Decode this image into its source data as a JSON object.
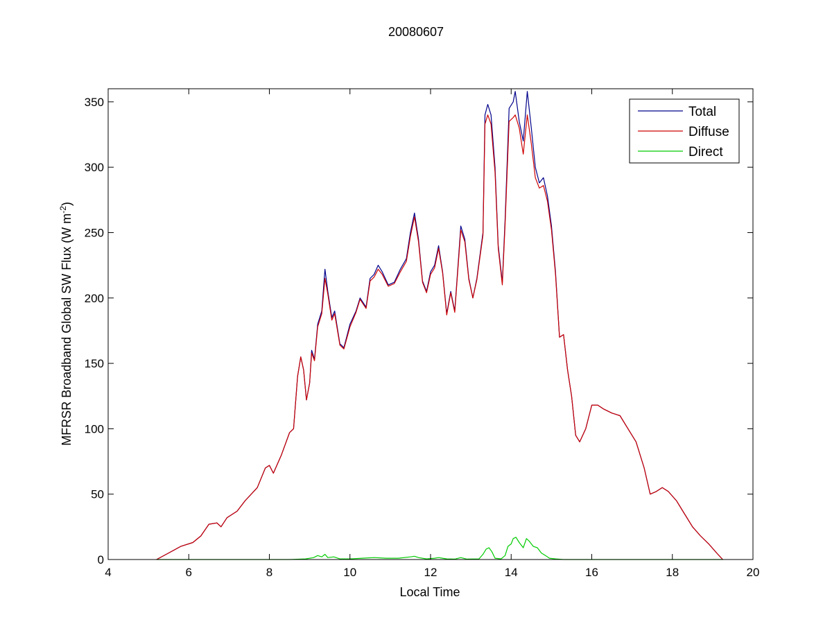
{
  "chart_data": {
    "type": "line",
    "title": "20080607",
    "xlabel": "Local Time",
    "ylabel_main": "MFRSR Broadband Global SW Flux (W m",
    "ylabel_sup": "-2",
    "ylabel_close": ")",
    "xlim": [
      4,
      20
    ],
    "ylim": [
      0,
      360
    ],
    "xticks": [
      4,
      6,
      8,
      10,
      12,
      14,
      16,
      18,
      20
    ],
    "yticks": [
      0,
      50,
      100,
      150,
      200,
      250,
      300,
      350
    ],
    "grid": false,
    "legend_position": "top-right",
    "series": [
      {
        "name": "Total",
        "color": "#00008B",
        "points": [
          [
            5.2,
            0
          ],
          [
            5.5,
            5
          ],
          [
            5.8,
            10
          ],
          [
            6.1,
            13
          ],
          [
            6.3,
            18
          ],
          [
            6.5,
            27
          ],
          [
            6.7,
            28
          ],
          [
            6.8,
            25
          ],
          [
            6.95,
            32
          ],
          [
            7.2,
            37
          ],
          [
            7.4,
            45
          ],
          [
            7.7,
            55
          ],
          [
            7.9,
            70
          ],
          [
            8.0,
            72
          ],
          [
            8.1,
            66
          ],
          [
            8.3,
            80
          ],
          [
            8.5,
            97
          ],
          [
            8.6,
            100
          ],
          [
            8.7,
            140
          ],
          [
            8.78,
            155
          ],
          [
            8.85,
            145
          ],
          [
            8.92,
            122
          ],
          [
            9.0,
            135
          ],
          [
            9.05,
            160
          ],
          [
            9.12,
            153
          ],
          [
            9.2,
            180
          ],
          [
            9.3,
            190
          ],
          [
            9.38,
            222
          ],
          [
            9.45,
            205
          ],
          [
            9.55,
            185
          ],
          [
            9.62,
            190
          ],
          [
            9.75,
            165
          ],
          [
            9.85,
            162
          ],
          [
            10.0,
            180
          ],
          [
            10.15,
            190
          ],
          [
            10.25,
            200
          ],
          [
            10.4,
            193
          ],
          [
            10.5,
            215
          ],
          [
            10.6,
            218
          ],
          [
            10.7,
            225
          ],
          [
            10.8,
            220
          ],
          [
            10.95,
            210
          ],
          [
            11.1,
            212
          ],
          [
            11.25,
            222
          ],
          [
            11.4,
            230
          ],
          [
            11.5,
            250
          ],
          [
            11.6,
            265
          ],
          [
            11.7,
            245
          ],
          [
            11.8,
            213
          ],
          [
            11.9,
            205
          ],
          [
            12.0,
            220
          ],
          [
            12.1,
            225
          ],
          [
            12.2,
            240
          ],
          [
            12.3,
            220
          ],
          [
            12.4,
            188
          ],
          [
            12.5,
            205
          ],
          [
            12.6,
            190
          ],
          [
            12.75,
            255
          ],
          [
            12.85,
            245
          ],
          [
            12.95,
            215
          ],
          [
            13.05,
            200
          ],
          [
            13.15,
            215
          ],
          [
            13.3,
            250
          ],
          [
            13.35,
            340
          ],
          [
            13.42,
            348
          ],
          [
            13.5,
            340
          ],
          [
            13.6,
            300
          ],
          [
            13.68,
            240
          ],
          [
            13.78,
            212
          ],
          [
            13.85,
            260
          ],
          [
            13.95,
            345
          ],
          [
            14.05,
            350
          ],
          [
            14.1,
            358
          ],
          [
            14.2,
            335
          ],
          [
            14.3,
            320
          ],
          [
            14.4,
            358
          ],
          [
            14.5,
            330
          ],
          [
            14.6,
            300
          ],
          [
            14.7,
            288
          ],
          [
            14.8,
            292
          ],
          [
            14.9,
            278
          ],
          [
            15.0,
            255
          ],
          [
            15.1,
            220
          ],
          [
            15.2,
            170
          ],
          [
            15.3,
            172
          ],
          [
            15.4,
            145
          ],
          [
            15.5,
            125
          ],
          [
            15.6,
            95
          ],
          [
            15.7,
            90
          ],
          [
            15.85,
            100
          ],
          [
            16.0,
            118
          ],
          [
            16.15,
            118
          ],
          [
            16.3,
            115
          ],
          [
            16.5,
            112
          ],
          [
            16.7,
            110
          ],
          [
            16.9,
            100
          ],
          [
            17.1,
            90
          ],
          [
            17.3,
            70
          ],
          [
            17.45,
            50
          ],
          [
            17.6,
            52
          ],
          [
            17.75,
            55
          ],
          [
            17.9,
            52
          ],
          [
            18.1,
            45
          ],
          [
            18.3,
            35
          ],
          [
            18.5,
            25
          ],
          [
            18.7,
            18
          ],
          [
            18.9,
            12
          ],
          [
            19.1,
            5
          ],
          [
            19.25,
            0
          ]
        ]
      },
      {
        "name": "Diffuse",
        "color": "#CC0000",
        "points": [
          [
            5.2,
            0
          ],
          [
            5.5,
            5
          ],
          [
            5.8,
            10
          ],
          [
            6.1,
            13
          ],
          [
            6.3,
            18
          ],
          [
            6.5,
            27
          ],
          [
            6.7,
            28
          ],
          [
            6.8,
            25
          ],
          [
            6.95,
            32
          ],
          [
            7.2,
            37
          ],
          [
            7.4,
            45
          ],
          [
            7.7,
            55
          ],
          [
            7.9,
            70
          ],
          [
            8.0,
            72
          ],
          [
            8.1,
            66
          ],
          [
            8.3,
            80
          ],
          [
            8.5,
            97
          ],
          [
            8.6,
            100
          ],
          [
            8.7,
            140
          ],
          [
            8.78,
            155
          ],
          [
            8.85,
            145
          ],
          [
            8.92,
            122
          ],
          [
            9.0,
            135
          ],
          [
            9.05,
            158
          ],
          [
            9.12,
            152
          ],
          [
            9.2,
            178
          ],
          [
            9.3,
            188
          ],
          [
            9.38,
            215
          ],
          [
            9.45,
            203
          ],
          [
            9.55,
            183
          ],
          [
            9.62,
            188
          ],
          [
            9.75,
            164
          ],
          [
            9.85,
            161
          ],
          [
            10.0,
            178
          ],
          [
            10.15,
            189
          ],
          [
            10.25,
            199
          ],
          [
            10.4,
            192
          ],
          [
            10.5,
            213
          ],
          [
            10.6,
            216
          ],
          [
            10.7,
            222
          ],
          [
            10.8,
            218
          ],
          [
            10.95,
            209
          ],
          [
            11.1,
            211
          ],
          [
            11.25,
            220
          ],
          [
            11.4,
            228
          ],
          [
            11.5,
            247
          ],
          [
            11.6,
            262
          ],
          [
            11.7,
            243
          ],
          [
            11.8,
            212
          ],
          [
            11.9,
            204
          ],
          [
            12.0,
            218
          ],
          [
            12.1,
            223
          ],
          [
            12.2,
            238
          ],
          [
            12.3,
            219
          ],
          [
            12.4,
            187
          ],
          [
            12.5,
            204
          ],
          [
            12.6,
            189
          ],
          [
            12.75,
            252
          ],
          [
            12.85,
            243
          ],
          [
            12.95,
            214
          ],
          [
            13.05,
            200
          ],
          [
            13.15,
            214
          ],
          [
            13.3,
            248
          ],
          [
            13.35,
            333
          ],
          [
            13.42,
            340
          ],
          [
            13.5,
            333
          ],
          [
            13.6,
            296
          ],
          [
            13.68,
            238
          ],
          [
            13.78,
            210
          ],
          [
            13.85,
            256
          ],
          [
            13.95,
            335
          ],
          [
            14.05,
            338
          ],
          [
            14.1,
            340
          ],
          [
            14.2,
            330
          ],
          [
            14.3,
            310
          ],
          [
            14.4,
            340
          ],
          [
            14.5,
            318
          ],
          [
            14.6,
            292
          ],
          [
            14.7,
            284
          ],
          [
            14.8,
            286
          ],
          [
            14.9,
            274
          ],
          [
            15.0,
            252
          ],
          [
            15.1,
            218
          ],
          [
            15.2,
            170
          ],
          [
            15.3,
            172
          ],
          [
            15.4,
            145
          ],
          [
            15.5,
            125
          ],
          [
            15.6,
            95
          ],
          [
            15.7,
            90
          ],
          [
            15.85,
            100
          ],
          [
            16.0,
            118
          ],
          [
            16.15,
            118
          ],
          [
            16.3,
            115
          ],
          [
            16.5,
            112
          ],
          [
            16.7,
            110
          ],
          [
            16.9,
            100
          ],
          [
            17.1,
            90
          ],
          [
            17.3,
            70
          ],
          [
            17.45,
            50
          ],
          [
            17.6,
            52
          ],
          [
            17.75,
            55
          ],
          [
            17.9,
            52
          ],
          [
            18.1,
            45
          ],
          [
            18.3,
            35
          ],
          [
            18.5,
            25
          ],
          [
            18.7,
            18
          ],
          [
            18.9,
            12
          ],
          [
            19.1,
            5
          ],
          [
            19.25,
            0
          ]
        ]
      },
      {
        "name": "Direct",
        "color": "#00CC00",
        "points": [
          [
            5.2,
            0
          ],
          [
            8.5,
            0
          ],
          [
            8.9,
            0.5
          ],
          [
            9.1,
            1.5
          ],
          [
            9.2,
            3
          ],
          [
            9.3,
            2
          ],
          [
            9.38,
            4
          ],
          [
            9.45,
            1.5
          ],
          [
            9.6,
            2
          ],
          [
            9.75,
            0.5
          ],
          [
            10.0,
            0.5
          ],
          [
            10.3,
            1
          ],
          [
            10.6,
            1.5
          ],
          [
            10.9,
            1
          ],
          [
            11.2,
            1
          ],
          [
            11.5,
            2
          ],
          [
            11.6,
            2.5
          ],
          [
            11.7,
            1.5
          ],
          [
            11.9,
            0.5
          ],
          [
            12.1,
            1
          ],
          [
            12.2,
            1.5
          ],
          [
            12.4,
            0.5
          ],
          [
            12.6,
            0.3
          ],
          [
            12.75,
            1.5
          ],
          [
            12.9,
            0.3
          ],
          [
            13.2,
            0.5
          ],
          [
            13.3,
            4
          ],
          [
            13.38,
            8
          ],
          [
            13.45,
            9
          ],
          [
            13.52,
            6
          ],
          [
            13.6,
            1
          ],
          [
            13.75,
            0.5
          ],
          [
            13.85,
            3
          ],
          [
            13.92,
            10
          ],
          [
            14.0,
            12
          ],
          [
            14.05,
            16
          ],
          [
            14.12,
            17
          ],
          [
            14.2,
            13
          ],
          [
            14.3,
            9
          ],
          [
            14.38,
            16
          ],
          [
            14.45,
            14
          ],
          [
            14.55,
            10
          ],
          [
            14.65,
            9
          ],
          [
            14.75,
            5
          ],
          [
            14.85,
            3
          ],
          [
            14.95,
            1
          ],
          [
            15.1,
            0.5
          ],
          [
            15.3,
            0
          ],
          [
            19.25,
            0
          ]
        ]
      }
    ]
  }
}
